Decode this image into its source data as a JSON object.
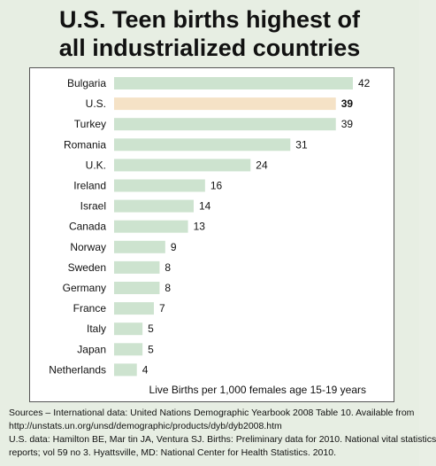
{
  "title": {
    "line1": "U.S. Teen births highest of",
    "line2": "all industrialized countries"
  },
  "colors": {
    "bar": "#cde3cf",
    "highlight": "#f5e2c6",
    "text": "#111111",
    "background": "#e7eee3"
  },
  "chart_data": {
    "type": "bar",
    "orientation": "horizontal",
    "categories": [
      "Bulgaria",
      "U.S.",
      "Turkey",
      "Romania",
      "U.K.",
      "Ireland",
      "Israel",
      "Canada",
      "Norway",
      "Sweden",
      "Germany",
      "France",
      "Italy",
      "Japan",
      "Netherlands"
    ],
    "values": [
      42,
      39,
      39,
      31,
      24,
      16,
      14,
      13,
      9,
      8,
      8,
      7,
      5,
      5,
      4
    ],
    "value_labels": [
      "42",
      "39",
      "39",
      "31",
      "24",
      "16",
      "14",
      "13",
      "9",
      "8",
      "8",
      "7",
      "5",
      "5",
      "4"
    ],
    "highlight_category": "U.S.",
    "title": "U.S. Teen births highest of all industrialized countries",
    "xlabel": "Live Births per 1,000 females age 15-19 years",
    "ylabel": "",
    "xlim": [
      0,
      42
    ],
    "grid": false,
    "legend": "none"
  },
  "sources": {
    "line1": "Sources – International data: United Nations Demographic Yearbook 2008 Table 10.  Available from",
    "line2": "http://unstats.un.org/unsd/demographic/products/dyb/dyb2008.htm",
    "line3": "U.S. data: Hamilton BE, Mar tin JA, Ventura SJ. Births: Preliminary data for 2010. National vital statistics",
    "line4": "reports; vol 59 no 3. Hyattsville, MD: National Center for Health Statistics. 2010."
  }
}
